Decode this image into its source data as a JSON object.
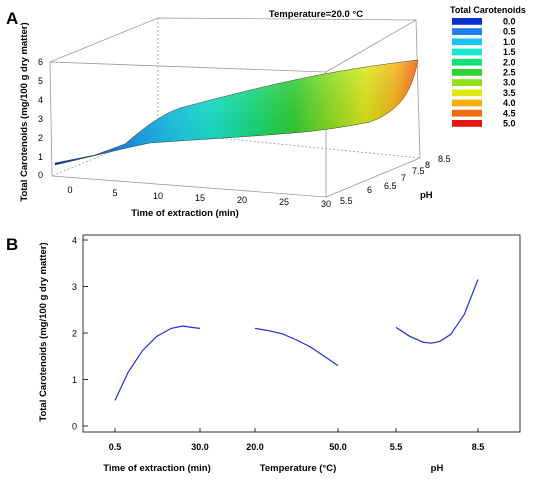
{
  "chart_data": [
    {
      "panel": "A",
      "type": "surface",
      "title": "Temperature=20.0 °C",
      "xlabel": "Time of extraction (min)",
      "ylabel": "pH",
      "zlabel": "Total Carotenoids (mg/100 g dry matter)",
      "x_ticks": [
        "0",
        "5",
        "10",
        "15",
        "20",
        "25",
        "30"
      ],
      "y_ticks": [
        "5.5",
        "6",
        "6.5",
        "7",
        "7.5",
        "8",
        "8.5"
      ],
      "z_ticks": [
        "0",
        "1",
        "2",
        "3",
        "4",
        "5",
        "6"
      ],
      "xlim": [
        0,
        30
      ],
      "ylim": [
        5.5,
        8.5
      ],
      "zlim": [
        0,
        6
      ],
      "legend": {
        "title": "Total Carotenoids",
        "placement": "right",
        "entries": [
          {
            "label": "0.0",
            "color": "#0a2fd6"
          },
          {
            "label": "0.5",
            "color": "#1f7ef0"
          },
          {
            "label": "1.0",
            "color": "#1cc3f0"
          },
          {
            "label": "1.5",
            "color": "#18e8d2"
          },
          {
            "label": "2.0",
            "color": "#16e07a"
          },
          {
            "label": "2.5",
            "color": "#2ed232"
          },
          {
            "label": "3.0",
            "color": "#8fe01a"
          },
          {
            "label": "3.5",
            "color": "#dcea12"
          },
          {
            "label": "4.0",
            "color": "#f6b010"
          },
          {
            "label": "4.5",
            "color": "#f26a10"
          },
          {
            "label": "5.0",
            "color": "#e3160f"
          }
        ]
      },
      "surface_edges": {
        "ph_5_5": [
          [
            0.5,
            0.3
          ],
          [
            5,
            0.8
          ],
          [
            10,
            1.4
          ],
          [
            15,
            1.8
          ],
          [
            20,
            2.0
          ],
          [
            25,
            2.0
          ],
          [
            30,
            2.0
          ]
        ],
        "ph_8_5": [
          [
            0.5,
            0.35
          ],
          [
            5,
            0.9
          ],
          [
            10,
            2.1
          ],
          [
            12,
            2.9
          ],
          [
            15,
            3.1
          ],
          [
            20,
            3.5
          ],
          [
            25,
            3.9
          ],
          [
            30,
            4.6
          ]
        ],
        "time_0_5": [
          [
            5.5,
            0.3
          ],
          [
            8.5,
            0.35
          ]
        ],
        "time_30": [
          [
            5.5,
            2.0
          ],
          [
            6.5,
            2.0
          ],
          [
            7.5,
            2.3
          ],
          [
            8.0,
            3.0
          ],
          [
            8.5,
            4.6
          ]
        ]
      }
    },
    {
      "panel": "B",
      "type": "line",
      "ylabel": "Total Carotenoids (mg/100 g dry matter)",
      "ylim": [
        0,
        4
      ],
      "y_ticks": [
        "0",
        "1",
        "2",
        "3",
        "4"
      ],
      "grid": false,
      "factors": [
        {
          "name": "Time of extraction (min)",
          "range_labels": [
            "0.5",
            "30.0"
          ],
          "points": [
            [
              0.5,
              0.55
            ],
            [
              5,
              1.15
            ],
            [
              10,
              1.62
            ],
            [
              15,
              1.93
            ],
            [
              20,
              2.1
            ],
            [
              24,
              2.15
            ],
            [
              27,
              2.12
            ],
            [
              30,
              2.1
            ]
          ]
        },
        {
          "name": "Temperature (°C)",
          "range_labels": [
            "20.0",
            "50.0"
          ],
          "points": [
            [
              20,
              2.1
            ],
            [
              25,
              2.05
            ],
            [
              30,
              1.98
            ],
            [
              35,
              1.85
            ],
            [
              40,
              1.7
            ],
            [
              45,
              1.5
            ],
            [
              50,
              1.3
            ]
          ]
        },
        {
          "name": "pH",
          "range_labels": [
            "5.5",
            "8.5"
          ],
          "points": [
            [
              5.5,
              2.12
            ],
            [
              6.0,
              1.93
            ],
            [
              6.5,
              1.8
            ],
            [
              6.8,
              1.78
            ],
            [
              7.1,
              1.82
            ],
            [
              7.5,
              1.97
            ],
            [
              8.0,
              2.4
            ],
            [
              8.5,
              3.15
            ]
          ]
        }
      ],
      "line_color": "#1f2fd8"
    }
  ]
}
